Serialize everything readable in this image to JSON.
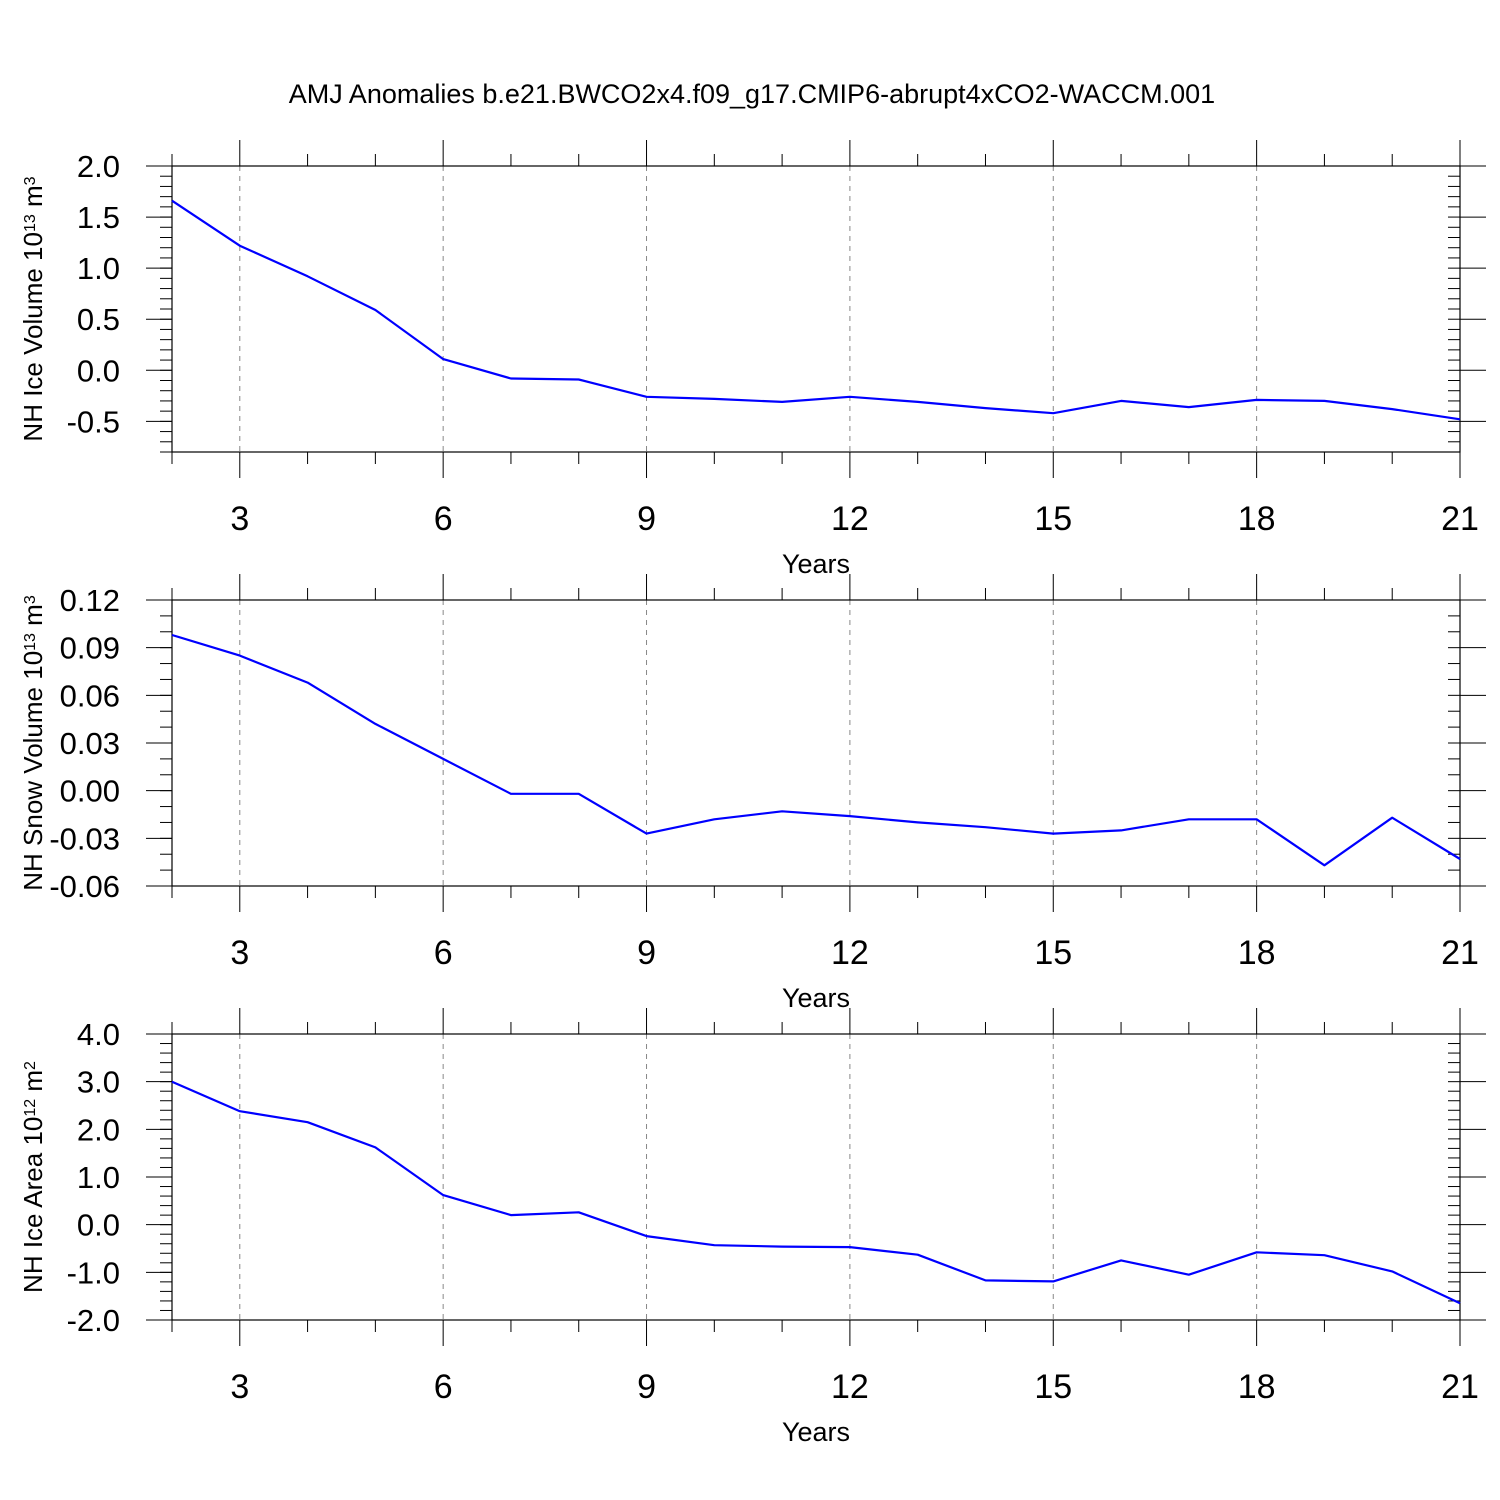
{
  "figure": {
    "title": "AMJ Anomalies b.e21.BWCO2x4.f09_g17.CMIP6-abrupt4xCO2-WACCM.001"
  },
  "chart_data": [
    {
      "type": "line",
      "ylabel": "NH Ice Volume 10",
      "ylabel_exp": "13",
      "ylabel_unit": " m",
      "ylabel_unit_exp": "3",
      "xlabel": "Years",
      "xlim": [
        2,
        21
      ],
      "ylim": [
        -0.8,
        2.0
      ],
      "xticks": [
        3,
        6,
        9,
        12,
        15,
        18,
        21
      ],
      "xtick_labels": [
        "3",
        "6",
        "9",
        "12",
        "15",
        "18",
        "21"
      ],
      "yticks": [
        2.0,
        1.5,
        1.0,
        0.5,
        0.0,
        -0.5
      ],
      "ytick_labels": [
        "2.0",
        "1.5",
        "1.0",
        "0.5",
        "0.0",
        "-0.5"
      ],
      "y_minor_step": 0.1,
      "gridlines": "vertical dashed at major x ticks",
      "line_color": "#0000ff",
      "x": [
        2,
        3,
        4,
        5,
        6,
        7,
        8,
        9,
        10,
        11,
        12,
        13,
        14,
        15,
        16,
        17,
        18,
        19,
        20,
        21
      ],
      "y": [
        1.66,
        1.22,
        0.92,
        0.59,
        0.11,
        -0.08,
        -0.09,
        -0.26,
        -0.28,
        -0.31,
        -0.26,
        -0.31,
        -0.37,
        -0.42,
        -0.3,
        -0.36,
        -0.29,
        -0.3,
        -0.38,
        -0.48
      ]
    },
    {
      "type": "line",
      "ylabel": "NH Snow Volume 10",
      "ylabel_exp": "13",
      "ylabel_unit": " m",
      "ylabel_unit_exp": "3",
      "xlabel": "Years",
      "xlim": [
        2,
        21
      ],
      "ylim": [
        -0.06,
        0.12
      ],
      "xticks": [
        3,
        6,
        9,
        12,
        15,
        18,
        21
      ],
      "xtick_labels": [
        "3",
        "6",
        "9",
        "12",
        "15",
        "18",
        "21"
      ],
      "yticks": [
        0.12,
        0.09,
        0.06,
        0.03,
        0.0,
        -0.03,
        -0.06
      ],
      "ytick_labels": [
        "0.12",
        "0.09",
        "0.06",
        "0.03",
        "0.00",
        "-0.03",
        "-0.06"
      ],
      "y_minor_step": 0.01,
      "gridlines": "vertical dashed at major x ticks",
      "line_color": "#0000ff",
      "x": [
        2,
        3,
        4,
        5,
        6,
        7,
        8,
        9,
        10,
        11,
        12,
        13,
        14,
        15,
        16,
        17,
        18,
        19,
        20,
        21
      ],
      "y": [
        0.098,
        0.085,
        0.068,
        0.042,
        0.02,
        -0.002,
        -0.002,
        -0.027,
        -0.018,
        -0.013,
        -0.016,
        -0.02,
        -0.023,
        -0.027,
        -0.025,
        -0.018,
        -0.018,
        -0.047,
        -0.017,
        -0.043
      ]
    },
    {
      "type": "line",
      "ylabel": "NH Ice Area 10",
      "ylabel_exp": "12",
      "ylabel_unit": " m",
      "ylabel_unit_exp": "2",
      "xlabel": "Years",
      "xlim": [
        2,
        21
      ],
      "ylim": [
        -2.0,
        4.0
      ],
      "xticks": [
        3,
        6,
        9,
        12,
        15,
        18,
        21
      ],
      "xtick_labels": [
        "3",
        "6",
        "9",
        "12",
        "15",
        "18",
        "21"
      ],
      "yticks": [
        4.0,
        3.0,
        2.0,
        1.0,
        0.0,
        -1.0,
        -2.0
      ],
      "ytick_labels": [
        "4.0",
        "3.0",
        "2.0",
        "1.0",
        "0.0",
        "-1.0",
        "-2.0"
      ],
      "y_minor_step": 0.2,
      "gridlines": "vertical dashed at major x ticks",
      "line_color": "#0000ff",
      "x": [
        2,
        3,
        4,
        5,
        6,
        7,
        8,
        9,
        10,
        11,
        12,
        13,
        14,
        15,
        16,
        17,
        18,
        19,
        20,
        21
      ],
      "y": [
        3.0,
        2.38,
        2.15,
        1.62,
        0.62,
        0.2,
        0.26,
        -0.24,
        -0.43,
        -0.46,
        -0.47,
        -0.63,
        -1.17,
        -1.19,
        -0.75,
        -1.05,
        -0.58,
        -0.64,
        -0.98,
        -1.65
      ]
    }
  ]
}
